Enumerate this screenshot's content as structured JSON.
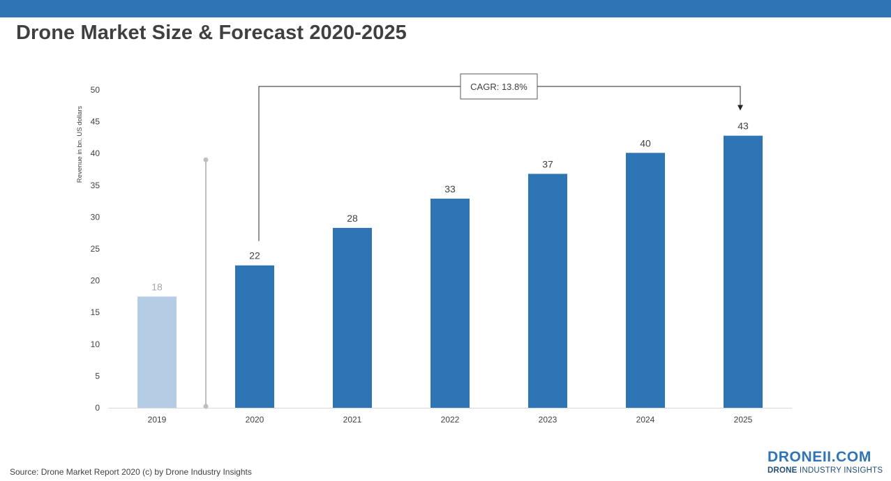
{
  "title": "Drone Market Size & Forecast 2020-2025",
  "source": "Source: Drone Market Report 2020 (c) by Drone Industry Insights",
  "logo": {
    "main": "DRONEII.COM",
    "sub_bold": "DRONE",
    "sub_rest": " INDUSTRY INSIGHTS"
  },
  "colors": {
    "band": "#2e75b6",
    "bar": "#2e75b6",
    "bar_past": "#b4cde4",
    "label_past": "#a6a6a6",
    "divider": "#bfbfbf"
  },
  "chart_data": {
    "type": "bar",
    "categories": [
      "2019",
      "2020",
      "2021",
      "2022",
      "2023",
      "2024",
      "2025"
    ],
    "values": [
      17.5,
      22.4,
      28.3,
      32.9,
      36.8,
      40.1,
      42.8
    ],
    "data_labels": [
      "18",
      "22",
      "28",
      "33",
      "37",
      "40",
      "43"
    ],
    "historical_categories": [
      "2019"
    ],
    "ylabel": "Revenue in bn. US dollars",
    "ylim": [
      0,
      50
    ],
    "yticks": [
      0,
      5,
      10,
      15,
      20,
      25,
      30,
      35,
      40,
      45,
      50
    ],
    "grid": false,
    "legend": "none",
    "annotation": {
      "text": "CAGR: 13.8%",
      "from": "2020",
      "to": "2025"
    }
  }
}
